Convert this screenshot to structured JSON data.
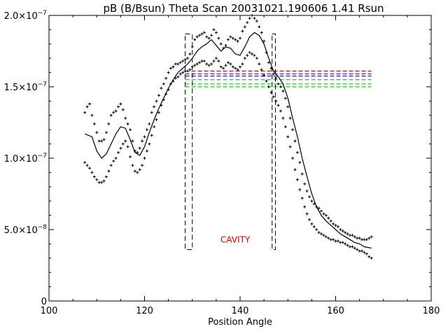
{
  "chart_data": {
    "type": "scatter",
    "title": "pB (B/Bsun) Theta Scan 20031021.190606 1.41 Rsun",
    "xlabel": "Position Angle",
    "ylabel": "",
    "xlim": [
      100,
      180
    ],
    "ylim": [
      0,
      2e-07
    ],
    "x_ticks": [
      100,
      120,
      140,
      160,
      180
    ],
    "y_ticks": [
      {
        "value": 0,
        "mantissa": "0",
        "exp": ""
      },
      {
        "value": 5e-08,
        "mantissa": "5.0×10",
        "exp": "−8"
      },
      {
        "value": 1e-07,
        "mantissa": "1.0×10",
        "exp": "−7"
      },
      {
        "value": 1.5e-07,
        "mantissa": "1.5×10",
        "exp": "−7"
      },
      {
        "value": 2e-07,
        "mantissa": "2.0×10",
        "exp": "−7"
      }
    ],
    "grid": false,
    "annotation": {
      "text": "CAVITY",
      "x": 139,
      "y": 4.1e-08,
      "color": "#cc0000"
    },
    "smooth_curve": {
      "x": [
        107.5,
        109,
        110,
        111,
        112,
        113,
        114,
        115,
        116,
        117,
        118,
        119,
        120,
        121,
        122,
        123,
        124,
        125,
        126,
        127,
        128,
        129,
        130,
        131,
        132,
        133,
        134,
        135,
        136,
        137,
        138,
        139,
        140,
        141,
        142,
        143,
        144,
        145,
        146,
        147,
        148,
        149,
        150,
        151,
        152,
        153,
        154,
        155,
        156,
        157,
        158,
        159,
        160,
        161,
        162,
        163,
        164,
        165,
        166,
        167.5
      ],
      "values": [
        1.17e-07,
        1.15e-07,
        1.05e-07,
        1e-07,
        1.03e-07,
        1.1e-07,
        1.17e-07,
        1.22e-07,
        1.21e-07,
        1.13e-07,
        1.04e-07,
        1.02e-07,
        1.08e-07,
        1.18e-07,
        1.27e-07,
        1.35e-07,
        1.42e-07,
        1.49e-07,
        1.55e-07,
        1.6e-07,
        1.63e-07,
        1.66e-07,
        1.7e-07,
        1.75e-07,
        1.78e-07,
        1.8e-07,
        1.83e-07,
        1.79e-07,
        1.75e-07,
        1.78e-07,
        1.77e-07,
        1.73e-07,
        1.72e-07,
        1.78e-07,
        1.85e-07,
        1.88e-07,
        1.86e-07,
        1.8e-07,
        1.7e-07,
        1.61e-07,
        1.57e-07,
        1.52e-07,
        1.42e-07,
        1.28e-07,
        1.15e-07,
        1e-07,
        8.7e-08,
        7.5e-08,
        6.6e-08,
        6e-08,
        5.6e-08,
        5.3e-08,
        5e-08,
        4.7e-08,
        4.5e-08,
        4.3e-08,
        4.1e-08,
        4e-08,
        3.8e-08,
        3.7e-08
      ]
    },
    "series": [
      {
        "color": "#000000",
        "x": [
          107.5,
          108,
          108.5,
          109,
          109.5,
          110,
          110.5,
          111,
          111.5,
          112,
          112.5,
          113,
          113.5,
          114,
          114.5,
          115,
          115.5,
          116,
          116.5,
          117,
          117.5,
          118,
          118.5,
          119,
          119.5,
          120,
          120.5,
          121,
          121.5,
          122,
          122.5,
          123,
          123.5,
          124,
          124.5,
          125,
          125.5,
          126,
          126.5,
          127,
          127.5,
          128,
          128.5,
          129,
          129.5,
          130,
          130.5,
          131,
          131.5,
          132,
          132.5,
          133,
          133.5,
          134,
          134.5,
          135,
          135.5,
          136,
          136.5,
          137,
          137.5,
          138,
          138.5,
          139,
          139.5,
          140,
          140.5,
          141,
          141.5,
          142,
          142.5,
          143,
          143.5,
          144,
          144.5,
          145,
          145.5,
          146,
          146.5,
          147,
          147.5,
          148,
          148.5,
          149,
          149.5,
          150,
          150.5,
          151,
          151.5,
          152,
          152.5,
          153,
          153.5,
          154,
          154.5,
          155,
          155.5,
          156,
          156.5,
          157,
          157.5,
          158,
          158.5,
          159,
          159.5,
          160,
          160.5,
          161,
          161.5,
          162,
          162.5,
          163,
          163.5,
          164,
          164.5,
          165,
          165.5,
          166,
          166.5,
          167,
          167.5
        ],
        "values": [
          1.32e-07,
          1.36e-07,
          1.38e-07,
          1.3e-07,
          1.24e-07,
          1.18e-07,
          1.12e-07,
          1.12e-07,
          1.13e-07,
          1.18e-07,
          1.24e-07,
          1.3e-07,
          1.32e-07,
          1.33e-07,
          1.36e-07,
          1.38e-07,
          1.34e-07,
          1.28e-07,
          1.24e-07,
          1.2e-07,
          1.12e-07,
          1.05e-07,
          1.04e-07,
          1.07e-07,
          1.12e-07,
          1.15e-07,
          1.2e-07,
          1.24e-07,
          1.32e-07,
          1.36e-07,
          1.4e-07,
          1.44e-07,
          1.49e-07,
          1.52e-07,
          1.56e-07,
          1.6e-07,
          1.63e-07,
          1.64e-07,
          1.66e-07,
          1.66e-07,
          1.67e-07,
          1.68e-07,
          1.69e-07,
          1.7e-07,
          1.73e-07,
          1.78e-07,
          1.83e-07,
          1.85e-07,
          1.86e-07,
          1.87e-07,
          1.88e-07,
          1.85e-07,
          1.84e-07,
          1.86e-07,
          1.9e-07,
          1.88e-07,
          1.84e-07,
          1.8e-07,
          1.77e-07,
          1.79e-07,
          1.83e-07,
          1.85e-07,
          1.84e-07,
          1.83e-07,
          1.82e-07,
          1.84e-07,
          1.89e-07,
          1.92e-07,
          1.95e-07,
          1.98e-07,
          2e-07,
          1.98e-07,
          1.96e-07,
          1.92e-07,
          1.88e-07,
          1.82e-07,
          1.74e-07,
          1.67e-07,
          1.63e-07,
          1.59e-07,
          1.56e-07,
          1.52e-07,
          1.5e-07,
          1.47e-07,
          1.42e-07,
          1.36e-07,
          1.28e-07,
          1.2e-07,
          1.12e-07,
          1.04e-07,
          9.7e-08,
          8.9e-08,
          8.2e-08,
          7.7e-08,
          7.3e-08,
          7e-08,
          6.8e-08,
          6.6e-08,
          6.5e-08,
          6.3e-08,
          6.1e-08,
          6e-08,
          5.8e-08,
          5.6e-08,
          5.4e-08,
          5.3e-08,
          5.2e-08,
          5e-08,
          4.9e-08,
          4.8e-08,
          4.7e-08,
          4.6e-08,
          4.6e-08,
          4.5e-08,
          4.4e-08,
          4.4e-08,
          4.3e-08,
          4.3e-08,
          4.3e-08,
          4.4e-08,
          4.5e-08
        ]
      },
      {
        "color": "#000000",
        "x": [
          107.5,
          108,
          108.5,
          109,
          109.5,
          110,
          110.5,
          111,
          111.5,
          112,
          112.5,
          113,
          113.5,
          114,
          114.5,
          115,
          115.5,
          116,
          116.5,
          117,
          117.5,
          118,
          118.5,
          119,
          119.5,
          120,
          120.5,
          121,
          121.5,
          122,
          122.5,
          123,
          123.5,
          124,
          124.5,
          125,
          125.5,
          126,
          126.5,
          127,
          127.5,
          128,
          128.5,
          129,
          129.5,
          130,
          130.5,
          131,
          131.5,
          132,
          132.5,
          133,
          133.5,
          134,
          134.5,
          135,
          135.5,
          136,
          136.5,
          137,
          137.5,
          138,
          138.5,
          139,
          139.5,
          140,
          140.5,
          141,
          141.5,
          142,
          142.5,
          143,
          143.5,
          144,
          144.5,
          145,
          145.5,
          146,
          146.5,
          147,
          147.5,
          148,
          148.5,
          149,
          149.5,
          150,
          150.5,
          151,
          151.5,
          152,
          152.5,
          153,
          153.5,
          154,
          154.5,
          155,
          155.5,
          156,
          156.5,
          157,
          157.5,
          158,
          158.5,
          159,
          159.5,
          160,
          160.5,
          161,
          161.5,
          162,
          162.5,
          163,
          163.5,
          164,
          164.5,
          165,
          165.5,
          166,
          166.5,
          167,
          167.5
        ],
        "values": [
          9.7e-08,
          9.5e-08,
          9.3e-08,
          9e-08,
          8.7e-08,
          8.5e-08,
          8.3e-08,
          8.3e-08,
          8.4e-08,
          8.7e-08,
          9.1e-08,
          9.5e-08,
          9.8e-08,
          1e-07,
          1.04e-07,
          1.07e-07,
          1.1e-07,
          1.12e-07,
          1.08e-07,
          1.01e-07,
          9.5e-08,
          9.1e-08,
          9e-08,
          9.2e-08,
          9.5e-08,
          1e-07,
          1.05e-07,
          1.1e-07,
          1.16e-07,
          1.22e-07,
          1.27e-07,
          1.32e-07,
          1.37e-07,
          1.41e-07,
          1.45e-07,
          1.48e-07,
          1.52e-07,
          1.54e-07,
          1.56e-07,
          1.57e-07,
          1.59e-07,
          1.6e-07,
          1.61e-07,
          1.61e-07,
          1.62e-07,
          1.64e-07,
          1.65e-07,
          1.66e-07,
          1.67e-07,
          1.68e-07,
          1.68e-07,
          1.66e-07,
          1.65e-07,
          1.66e-07,
          1.68e-07,
          1.7e-07,
          1.68e-07,
          1.64e-07,
          1.63e-07,
          1.65e-07,
          1.67e-07,
          1.66e-07,
          1.64e-07,
          1.63e-07,
          1.62e-07,
          1.64e-07,
          1.66e-07,
          1.7e-07,
          1.72e-07,
          1.74e-07,
          1.73e-07,
          1.72e-07,
          1.7e-07,
          1.66e-07,
          1.62e-07,
          1.58e-07,
          1.54e-07,
          1.5e-07,
          1.46e-07,
          1.43e-07,
          1.4e-07,
          1.37e-07,
          1.33e-07,
          1.28e-07,
          1.22e-07,
          1.15e-07,
          1.08e-07,
          1e-07,
          9.2e-08,
          8.5e-08,
          7.8e-08,
          7.2e-08,
          6.6e-08,
          6.1e-08,
          5.7e-08,
          5.4e-08,
          5.2e-08,
          5e-08,
          4.8e-08,
          4.7e-08,
          4.6e-08,
          4.5e-08,
          4.4e-08,
          4.3e-08,
          4.3e-08,
          4.2e-08,
          4.2e-08,
          4.1e-08,
          4.1e-08,
          4e-08,
          3.9e-08,
          3.8e-08,
          3.8e-08,
          3.7e-08,
          3.6e-08,
          3.5e-08,
          3.5e-08,
          3.4e-08,
          3.3e-08,
          3.1e-08,
          3e-08
        ]
      }
    ],
    "reference_lines": [
      {
        "y": 1.61e-07,
        "color": "#cc0000",
        "x_range": [
          128.5,
          167.5
        ]
      },
      {
        "y": 1.59e-07,
        "color": "#aa00aa",
        "x_range": [
          128.5,
          167.5
        ]
      },
      {
        "y": 1.575e-07,
        "color": "#0000cc",
        "x_range": [
          128.5,
          167.5
        ]
      },
      {
        "y": 1.55e-07,
        "color": "#22aa22",
        "x_range": [
          128.5,
          167.5
        ]
      },
      {
        "y": 1.52e-07,
        "color": "#00cc00",
        "x_range": [
          128.5,
          167.5
        ]
      },
      {
        "y": 1.5e-07,
        "color": "#00dd00",
        "x_range": [
          128.5,
          167.5
        ]
      }
    ],
    "boundary_boxes": [
      {
        "x_range": [
          128.5,
          130
        ],
        "y_range": [
          3.6e-08,
          1.87e-07
        ]
      },
      {
        "x_range": [
          146.7,
          147.4
        ],
        "y_range": [
          3.6e-08,
          1.87e-07
        ]
      }
    ]
  }
}
